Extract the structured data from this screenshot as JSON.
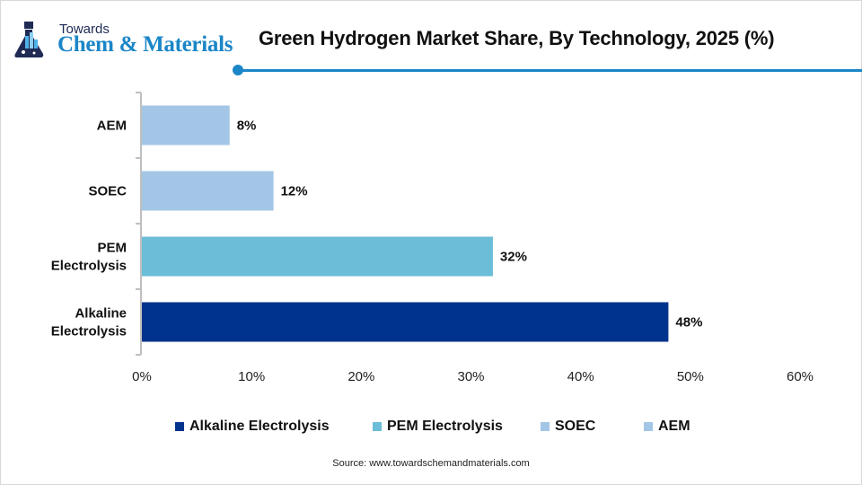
{
  "brand": {
    "line1": "Towards",
    "line2": "Chem & Materials",
    "icon": "flask-icon"
  },
  "header": {
    "title": "Green Hydrogen Market Share, By Technology, 2025 (%)"
  },
  "chart_data": {
    "type": "bar",
    "orientation": "horizontal",
    "title": "Green Hydrogen Market Share, By Technology, 2025 (%)",
    "categories": [
      "Alkaline Electrolysis",
      "PEM Electrolysis",
      "SOEC",
      "AEM"
    ],
    "category_label_lines": [
      [
        "Alkaline",
        "Electrolysis"
      ],
      [
        "PEM",
        "Electrolysis"
      ],
      [
        "SOEC"
      ],
      [
        "AEM"
      ]
    ],
    "values": [
      48,
      32,
      12,
      8
    ],
    "value_labels": [
      "48%",
      "32%",
      "12%",
      "8%"
    ],
    "colors": [
      "#00338d",
      "#6bbdd8",
      "#a4c6e6",
      "#a4c6e6"
    ],
    "xlabel": "",
    "ylabel": "",
    "xlim": [
      0,
      60
    ],
    "xticks": [
      0,
      10,
      20,
      30,
      40,
      50,
      60
    ],
    "xtick_labels": [
      "0%",
      "10%",
      "20%",
      "30%",
      "40%",
      "50%",
      "60%"
    ],
    "grid": false,
    "legend_position": "bottom",
    "legend": [
      {
        "label": "Alkaline Electrolysis",
        "color": "#00338d"
      },
      {
        "label": "PEM Electrolysis",
        "color": "#6bbdd8"
      },
      {
        "label": "SOEC",
        "color": "#a4c6e6"
      },
      {
        "label": "AEM",
        "color": "#a4c6e6"
      }
    ]
  },
  "footer": {
    "source": "Source: www.towardschemandmaterials.com"
  },
  "colors": {
    "accent": "#1b86c8",
    "brand_dark": "#1f2a55"
  }
}
